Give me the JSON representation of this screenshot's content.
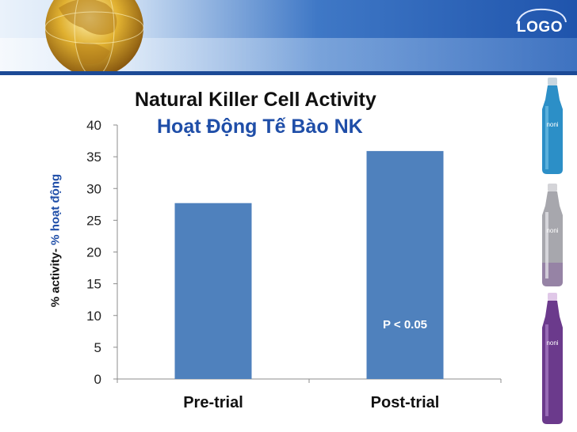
{
  "header": {
    "logo_text": "LOGO",
    "globe_icon": "globe-icon"
  },
  "chart_data": {
    "type": "bar",
    "title": "Natural Killer Cell Activity",
    "subtitle": "Hoạt Động Tế Bào NK",
    "ylabel_parts": [
      "% activity- ",
      "% hoạt động"
    ],
    "xlabel": "",
    "categories": [
      "Pre-trial",
      "Post-trial"
    ],
    "values": [
      27.7,
      35.9
    ],
    "ylim": [
      0,
      40
    ],
    "yticks": [
      0,
      5,
      10,
      15,
      20,
      25,
      30,
      35,
      40
    ],
    "bar_color": "#4f81bd",
    "annotation": "P < 0.05",
    "grid": false,
    "legend": "none"
  },
  "side_images": [
    {
      "name": "blue-bottle",
      "label": "noni",
      "color": "#2c8fc7"
    },
    {
      "name": "silver-bottle",
      "label": "noni",
      "color": "#a7a7ad"
    },
    {
      "name": "purple-bottle",
      "label": "noni",
      "color": "#6b3a8c"
    }
  ]
}
